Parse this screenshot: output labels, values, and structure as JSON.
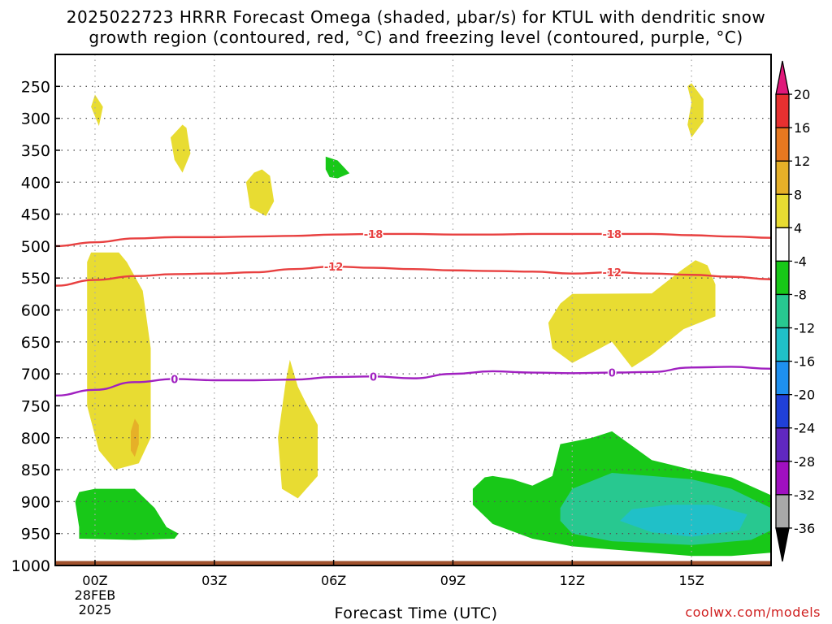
{
  "title": {
    "line1": "2025022723 HRRR Forecast Omega (shaded, μbar/s) for KTUL with dendritic snow",
    "line2": "growth region (contoured, red, °C) and freezing level (contoured, purple, °C)"
  },
  "credit": "coolwx.com/models",
  "chart_data": {
    "type": "area",
    "xlabel": "Forecast Time (UTC)",
    "ylabel": "",
    "x_range_hours": [
      -1,
      17
    ],
    "y_range_mb": [
      200,
      1000
    ],
    "y_scale": "linear",
    "y_inverted": true,
    "grid": true,
    "x_ticks": [
      {
        "hour": 0,
        "label": "00Z",
        "sub1": "28FEB",
        "sub2": "2025"
      },
      {
        "hour": 3,
        "label": "03Z"
      },
      {
        "hour": 6,
        "label": "06Z"
      },
      {
        "hour": 9,
        "label": "09Z"
      },
      {
        "hour": 12,
        "label": "12Z"
      },
      {
        "hour": 15,
        "label": "15Z"
      }
    ],
    "y_ticks": [
      250,
      300,
      350,
      400,
      450,
      500,
      550,
      600,
      650,
      700,
      750,
      800,
      850,
      900,
      950,
      1000
    ],
    "colorbar": {
      "labels": [
        "20",
        "16",
        "12",
        "8",
        "4",
        "-4",
        "-8",
        "-12",
        "-16",
        "-20",
        "-24",
        "-28",
        "-32",
        "-36"
      ],
      "colors": [
        "#e0187a",
        "#e83030",
        "#e87820",
        "#e6b028",
        "#e8dc32",
        "#ffffff",
        "#18c818",
        "#28c890",
        "#20c0c8",
        "#1e90f0",
        "#2040d8",
        "#6028c0",
        "#a010c0",
        "#a8a8a8",
        "#000000"
      ]
    },
    "series": [
      {
        "name": "-18",
        "color": "#e84040",
        "x": [
          -1,
          0,
          1,
          2,
          3,
          4,
          5,
          6,
          7,
          8,
          9,
          10,
          11,
          12,
          13,
          14,
          15,
          16,
          17
        ],
        "y": [
          500,
          494,
          488,
          486,
          486,
          485,
          484,
          482,
          481,
          481,
          482,
          482,
          481,
          481,
          481,
          481,
          483,
          485,
          487
        ]
      },
      {
        "name": "-12",
        "color": "#e84040",
        "x": [
          -1,
          0,
          1,
          2,
          3,
          4,
          5,
          6,
          7,
          8,
          9,
          10,
          11,
          12,
          13,
          14,
          15,
          16,
          17
        ],
        "y": [
          562,
          553,
          547,
          544,
          543,
          541,
          536,
          532,
          534,
          536,
          538,
          539,
          540,
          543,
          541,
          543,
          545,
          548,
          552
        ]
      },
      {
        "name": "0",
        "color": "#a020c0",
        "x": [
          -1,
          0,
          1,
          2,
          3,
          4,
          5,
          6,
          7,
          8,
          9,
          10,
          11,
          12,
          13,
          14,
          15,
          16,
          17
        ],
        "y": [
          734,
          725,
          713,
          708,
          710,
          710,
          709,
          705,
          704,
          707,
          700,
          696,
          698,
          699,
          698,
          697,
          690,
          689,
          692
        ]
      }
    ],
    "omega_regions": [
      {
        "level": "4 to 8",
        "color": "#e8dc32",
        "points": [
          [
            0.0,
            263
          ],
          [
            -0.1,
            282
          ],
          [
            0.1,
            312
          ],
          [
            0.2,
            282
          ]
        ]
      },
      {
        "level": "4 to 8",
        "color": "#e8dc32",
        "points": [
          [
            1.9,
            330
          ],
          [
            2.0,
            365
          ],
          [
            2.2,
            385
          ],
          [
            2.4,
            355
          ],
          [
            2.3,
            315
          ],
          [
            2.2,
            310
          ]
        ]
      },
      {
        "level": "4 to 8",
        "color": "#e8dc32",
        "points": [
          [
            3.8,
            400
          ],
          [
            3.9,
            440
          ],
          [
            4.3,
            453
          ],
          [
            4.5,
            430
          ],
          [
            4.4,
            390
          ],
          [
            4.2,
            380
          ],
          [
            4.0,
            385
          ]
        ]
      },
      {
        "level": "4 to 8",
        "color": "#e8dc32",
        "points": [
          [
            15.0,
            275
          ],
          [
            14.9,
            310
          ],
          [
            15.0,
            330
          ],
          [
            15.3,
            305
          ],
          [
            15.3,
            270
          ],
          [
            15.0,
            245
          ],
          [
            14.9,
            250
          ]
        ]
      },
      {
        "level": "4 to 8",
        "color": "#e8dc32",
        "points": [
          [
            -0.2,
            525
          ],
          [
            -0.2,
            750
          ],
          [
            0.1,
            820
          ],
          [
            0.5,
            850
          ],
          [
            1.1,
            840
          ],
          [
            1.4,
            800
          ],
          [
            1.4,
            660
          ],
          [
            1.2,
            570
          ],
          [
            0.8,
            525
          ],
          [
            0.6,
            510
          ],
          [
            -0.1,
            510
          ]
        ]
      },
      {
        "level": "4 to 8",
        "color": "#e8dc32",
        "points": [
          [
            4.6,
            800
          ],
          [
            4.7,
            880
          ],
          [
            5.1,
            895
          ],
          [
            5.6,
            860
          ],
          [
            5.6,
            780
          ],
          [
            5.3,
            745
          ],
          [
            5.1,
            720
          ],
          [
            4.9,
            678
          ],
          [
            4.8,
            710
          ]
        ]
      },
      {
        "level": "4 to 8",
        "color": "#e8dc32",
        "points": [
          [
            11.4,
            620
          ],
          [
            11.5,
            660
          ],
          [
            12.0,
            683
          ],
          [
            12.7,
            660
          ],
          [
            13.0,
            650
          ],
          [
            13.5,
            690
          ],
          [
            14.0,
            670
          ],
          [
            14.8,
            630
          ],
          [
            15.6,
            610
          ],
          [
            15.6,
            560
          ],
          [
            15.4,
            530
          ],
          [
            15.1,
            522
          ],
          [
            14.7,
            540
          ],
          [
            14.0,
            574
          ],
          [
            12.0,
            575
          ],
          [
            11.7,
            590
          ]
        ]
      },
      {
        "level": "8 to 12",
        "color": "#e6b028",
        "points": [
          [
            0.9,
            790
          ],
          [
            0.9,
            820
          ],
          [
            1.0,
            830
          ],
          [
            1.1,
            810
          ],
          [
            1.1,
            780
          ],
          [
            1.0,
            770
          ]
        ]
      },
      {
        "level": "-4 to -8",
        "color": "#18c818",
        "points": [
          [
            -0.5,
            900
          ],
          [
            -0.4,
            940
          ],
          [
            -0.4,
            958
          ],
          [
            1.0,
            960
          ],
          [
            2.0,
            958
          ],
          [
            2.1,
            950
          ],
          [
            1.8,
            940
          ],
          [
            1.5,
            910
          ],
          [
            1.0,
            880
          ],
          [
            0.0,
            880
          ],
          [
            -0.4,
            885
          ]
        ]
      },
      {
        "level": "-4 to -8",
        "color": "#18c818",
        "points": [
          [
            5.8,
            380
          ],
          [
            5.9,
            392
          ],
          [
            6.1,
            394
          ],
          [
            6.4,
            386
          ],
          [
            6.1,
            366
          ],
          [
            5.8,
            360
          ]
        ]
      },
      {
        "level": "-4 to -8",
        "color": "#18c818",
        "points": [
          [
            9.5,
            880
          ],
          [
            9.5,
            905
          ],
          [
            10.0,
            935
          ],
          [
            11.0,
            958
          ],
          [
            12.0,
            970
          ],
          [
            14.0,
            980
          ],
          [
            15.0,
            985
          ],
          [
            16.0,
            985
          ],
          [
            17.0,
            980
          ],
          [
            17.0,
            890
          ],
          [
            16.0,
            862
          ],
          [
            15.0,
            850
          ],
          [
            14.0,
            835
          ],
          [
            13.0,
            790
          ],
          [
            12.5,
            800
          ],
          [
            11.7,
            810
          ],
          [
            11.5,
            860
          ],
          [
            11.0,
            875
          ],
          [
            10.5,
            865
          ],
          [
            10.0,
            860
          ],
          [
            9.8,
            862
          ]
        ]
      },
      {
        "level": "-8 to -12",
        "color": "#28c890",
        "points": [
          [
            11.7,
            930
          ],
          [
            12.0,
            950
          ],
          [
            13.0,
            962
          ],
          [
            15.0,
            968
          ],
          [
            16.5,
            960
          ],
          [
            17.0,
            945
          ],
          [
            17.0,
            910
          ],
          [
            16.0,
            880
          ],
          [
            15.0,
            865
          ],
          [
            14.0,
            860
          ],
          [
            13.0,
            855
          ],
          [
            12.0,
            880
          ],
          [
            11.7,
            910
          ]
        ]
      },
      {
        "level": "-12 to -16",
        "color": "#20c0c8",
        "points": [
          [
            13.2,
            930
          ],
          [
            14.0,
            948
          ],
          [
            15.0,
            955
          ],
          [
            16.2,
            945
          ],
          [
            16.4,
            920
          ],
          [
            15.5,
            905
          ],
          [
            14.5,
            905
          ],
          [
            13.5,
            912
          ]
        ]
      }
    ],
    "ground": {
      "label": "surface",
      "color": "#a0522d",
      "top_mb": 993
    }
  }
}
